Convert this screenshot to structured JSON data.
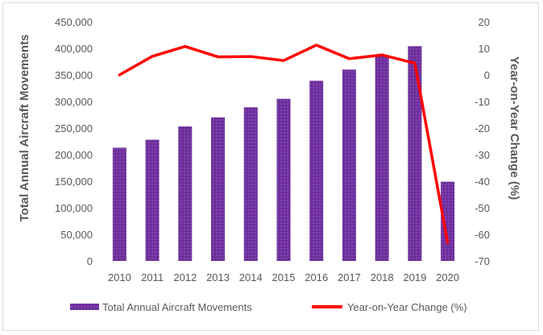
{
  "chart_data": {
    "type": "bar+line",
    "categories": [
      "2010",
      "2011",
      "2012",
      "2013",
      "2014",
      "2015",
      "2016",
      "2017",
      "2018",
      "2019",
      "2020"
    ],
    "series": [
      {
        "name": "Total Annual Aircraft Movements",
        "type": "bar",
        "axis": "left",
        "color": "#7030a0",
        "values": [
          213000,
          228000,
          253000,
          270000,
          289000,
          305000,
          339000,
          360000,
          387000,
          404000,
          149000
        ]
      },
      {
        "name": "Year-on-Year Change (%)",
        "type": "line",
        "axis": "right",
        "color": "#ff0000",
        "values": [
          0,
          7,
          10.7,
          6.8,
          6.9,
          5.4,
          11.2,
          6.1,
          7.5,
          4.4,
          -63.1
        ]
      }
    ],
    "y_left": {
      "label": "Total Annual Aircraft Movements",
      "range": [
        0,
        450000
      ],
      "ticks": [
        "0",
        "50,000",
        "100,000",
        "150,000",
        "200,000",
        "250,000",
        "300,000",
        "350,000",
        "400,000",
        "450,000"
      ]
    },
    "y_right": {
      "label": "Year-on-Year Change (%)",
      "range": [
        -70,
        20
      ],
      "ticks": [
        "-70",
        "-60",
        "-50",
        "-40",
        "-30",
        "-20",
        "-10",
        "0",
        "10",
        "20"
      ]
    },
    "legend": {
      "position": "bottom",
      "items": [
        "Total Annual Aircraft Movements",
        "Year-on-Year Change (%)"
      ]
    },
    "gridlines": false
  }
}
